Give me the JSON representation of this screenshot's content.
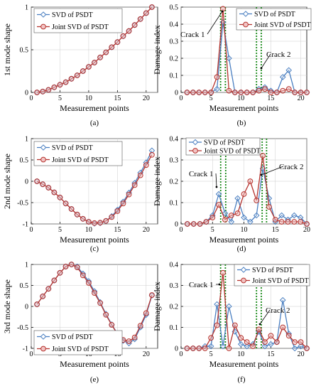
{
  "colors": {
    "svd": "#4a7fc1",
    "joint": "#b5332e",
    "crack_line": "#1a8a1a",
    "joint_fill": "#f2c4c4"
  },
  "chart_data": [
    {
      "type": "line",
      "panel_label": "(a)",
      "xlabel": "Measurement points",
      "ylabel": "1st mode shape",
      "xlim": [
        0,
        22
      ],
      "ylim": [
        0,
        1
      ],
      "xticks": [
        "0",
        "5",
        "10",
        "15",
        "20"
      ],
      "yticks": [
        "0",
        "0.5",
        "1"
      ],
      "grid": true,
      "legend_position": "top-left",
      "x": [
        1,
        2,
        3,
        4,
        5,
        6,
        7,
        8,
        9,
        10,
        11,
        12,
        13,
        14,
        15,
        16,
        17,
        18,
        19,
        20,
        21
      ],
      "series": [
        {
          "name": "SVD of PSDT",
          "values": [
            0,
            0.01,
            0.03,
            0.06,
            0.09,
            0.12,
            0.16,
            0.2,
            0.25,
            0.3,
            0.35,
            0.41,
            0.47,
            0.53,
            0.59,
            0.66,
            0.72,
            0.79,
            0.86,
            0.93,
            1
          ]
        },
        {
          "name": "Joint SVD of PSDT",
          "values": [
            0,
            0.01,
            0.03,
            0.06,
            0.09,
            0.12,
            0.16,
            0.2,
            0.25,
            0.3,
            0.35,
            0.41,
            0.47,
            0.53,
            0.59,
            0.66,
            0.72,
            0.79,
            0.86,
            0.93,
            1
          ]
        }
      ],
      "crack_lines": [],
      "annotations": []
    },
    {
      "type": "line",
      "panel_label": "(b)",
      "xlabel": "Measurement points",
      "ylabel": "Damage index",
      "xlim": [
        0,
        21
      ],
      "ylim": [
        0,
        0.5
      ],
      "xticks": [
        "0",
        "5",
        "10",
        "15",
        "20"
      ],
      "yticks": [
        "0",
        "0.1",
        "0.2",
        "0.3",
        "0.4",
        "0.5"
      ],
      "grid": true,
      "legend_position": "top-right",
      "x": [
        1,
        2,
        3,
        4,
        5,
        6,
        7,
        8,
        9,
        10,
        11,
        12,
        13,
        14,
        15,
        16,
        17,
        18,
        19,
        20,
        21
      ],
      "series": [
        {
          "name": "SVD of PSDT",
          "values": [
            0,
            0,
            0,
            0,
            0,
            0.02,
            0.41,
            0.2,
            0,
            0,
            0,
            0,
            0.02,
            0.03,
            0.01,
            0,
            0.09,
            0.13,
            0,
            0,
            0
          ]
        },
        {
          "name": "Joint SVD of PSDT",
          "values": [
            0,
            0,
            0,
            0,
            0,
            0.09,
            0.49,
            0.01,
            0,
            0,
            0,
            0,
            0.01,
            0.02,
            0,
            0,
            0.01,
            0.02,
            0,
            0,
            0
          ]
        }
      ],
      "crack_lines": [
        6.6,
        7.4,
        12.6,
        13.4
      ],
      "annotations": [
        "Crack 1",
        "Crack 2"
      ]
    },
    {
      "type": "line",
      "panel_label": "(c)",
      "xlabel": "Measurement points",
      "ylabel": "2nd mode shape",
      "xlim": [
        0,
        22
      ],
      "ylim": [
        -1,
        1
      ],
      "xticks": [
        "0",
        "5",
        "10",
        "15",
        "20"
      ],
      "yticks": [
        "-1",
        "-0.5",
        "0",
        "0.5",
        "1"
      ],
      "grid": true,
      "legend_position": "top-left",
      "x": [
        1,
        2,
        3,
        4,
        5,
        6,
        7,
        8,
        9,
        10,
        11,
        12,
        13,
        14,
        15,
        16,
        17,
        18,
        19,
        20,
        21
      ],
      "series": [
        {
          "name": "SVD of PSDT",
          "values": [
            0,
            -0.07,
            -0.15,
            -0.26,
            -0.38,
            -0.52,
            -0.65,
            -0.78,
            -0.88,
            -0.95,
            -0.99,
            -0.98,
            -0.93,
            -0.82,
            -0.67,
            -0.48,
            -0.27,
            -0.04,
            0.2,
            0.44,
            0.72
          ]
        },
        {
          "name": "Joint SVD of PSDT",
          "values": [
            0,
            -0.07,
            -0.15,
            -0.26,
            -0.38,
            -0.52,
            -0.65,
            -0.78,
            -0.88,
            -0.95,
            -0.98,
            -0.97,
            -0.93,
            -0.84,
            -0.7,
            -0.52,
            -0.31,
            -0.09,
            0.14,
            0.38,
            0.62
          ]
        }
      ],
      "crack_lines": [],
      "annotations": []
    },
    {
      "type": "line",
      "panel_label": "(d)",
      "xlabel": "Measurement points",
      "ylabel": "Damage index",
      "xlim": [
        0,
        20
      ],
      "ylim": [
        0,
        0.4
      ],
      "xticks": [
        "0",
        "5",
        "10",
        "15",
        "20"
      ],
      "yticks": [
        "0",
        "0.1",
        "0.2",
        "0.3",
        "0.4"
      ],
      "grid": true,
      "legend_position": "top-left",
      "x": [
        1,
        2,
        3,
        4,
        5,
        6,
        7,
        8,
        9,
        10,
        11,
        12,
        13,
        14,
        15,
        16,
        17,
        18,
        19,
        20
      ],
      "series": [
        {
          "name": "SVD of PSDT",
          "values": [
            0,
            0,
            0,
            0.01,
            0.04,
            0.14,
            0.05,
            0.01,
            0.12,
            0.03,
            0.01,
            0.04,
            0.26,
            0.12,
            0.01,
            0.04,
            0.02,
            0.04,
            0.03,
            0
          ]
        },
        {
          "name": "Joint SVD of PSDT",
          "values": [
            0,
            0,
            0,
            0.01,
            0.03,
            0.09,
            0.02,
            0.04,
            0.05,
            0.14,
            0.2,
            0.11,
            0.32,
            0.08,
            0.02,
            0.01,
            0.01,
            0.01,
            0.01,
            0
          ]
        }
      ],
      "crack_lines": [
        6.3,
        7.1,
        12.9,
        13.6
      ],
      "annotations": [
        "Crack 1",
        "Crack 2"
      ]
    },
    {
      "type": "line",
      "panel_label": "(e)",
      "xlabel": "Measurement points",
      "ylabel": "3rd mode shape",
      "xlim": [
        0,
        22
      ],
      "ylim": [
        -1,
        1
      ],
      "xticks": [
        "0",
        "5",
        "10",
        "15",
        "20"
      ],
      "yticks": [
        "-1",
        "-0.5",
        "0",
        "0.5",
        "1"
      ],
      "grid": true,
      "legend_position": "bottom-left",
      "x": [
        1,
        2,
        3,
        4,
        5,
        6,
        7,
        8,
        9,
        10,
        11,
        12,
        13,
        14,
        15,
        16,
        17,
        18,
        19,
        20,
        21
      ],
      "series": [
        {
          "name": "SVD of PSDT",
          "values": [
            0.05,
            0.24,
            0.42,
            0.62,
            0.8,
            0.95,
            1,
            0.95,
            0.78,
            0.6,
            0.36,
            0.1,
            -0.18,
            -0.43,
            -0.65,
            -0.82,
            -0.88,
            -0.78,
            -0.5,
            -0.2,
            0.26
          ]
        },
        {
          "name": "Joint SVD of PSDT",
          "values": [
            0.05,
            0.24,
            0.42,
            0.62,
            0.8,
            0.95,
            1,
            0.93,
            0.74,
            0.56,
            0.32,
            0.08,
            -0.2,
            -0.44,
            -0.66,
            -0.8,
            -0.83,
            -0.74,
            -0.46,
            -0.16,
            0.27
          ]
        }
      ],
      "crack_lines": [],
      "annotations": []
    },
    {
      "type": "line",
      "panel_label": "(f)",
      "xlabel": "Measurement points",
      "ylabel": "Damage index",
      "xlim": [
        0,
        21
      ],
      "ylim": [
        0,
        0.4
      ],
      "xticks": [
        "0",
        "5",
        "10",
        "15",
        "20"
      ],
      "yticks": [
        "0",
        "0.1",
        "0.2",
        "0.3",
        "0.4"
      ],
      "grid": true,
      "legend_position": "top-right",
      "x": [
        1,
        2,
        3,
        4,
        5,
        6,
        7,
        8,
        9,
        10,
        11,
        12,
        13,
        14,
        15,
        16,
        17,
        18,
        19,
        20,
        21
      ],
      "series": [
        {
          "name": "SVD of PSDT",
          "values": [
            0,
            0,
            0,
            0.01,
            0.01,
            0.21,
            0.01,
            0.2,
            0.08,
            0.02,
            0.01,
            0.02,
            0.08,
            0.01,
            0.02,
            0.03,
            0.23,
            0.07,
            0,
            0.01,
            0
          ]
        },
        {
          "name": "Joint SVD of PSDT",
          "values": [
            0,
            0,
            0,
            0,
            0.05,
            0.11,
            0.36,
            0,
            0.11,
            0.05,
            0.03,
            0.01,
            0.09,
            0.03,
            0.06,
            0.03,
            0.1,
            0.06,
            0.03,
            0.03,
            0
          ]
        }
      ],
      "crack_lines": [
        6.6,
        7.4,
        12.6,
        13.4
      ],
      "annotations": [
        "Crack 1",
        "Crack 2"
      ]
    }
  ]
}
